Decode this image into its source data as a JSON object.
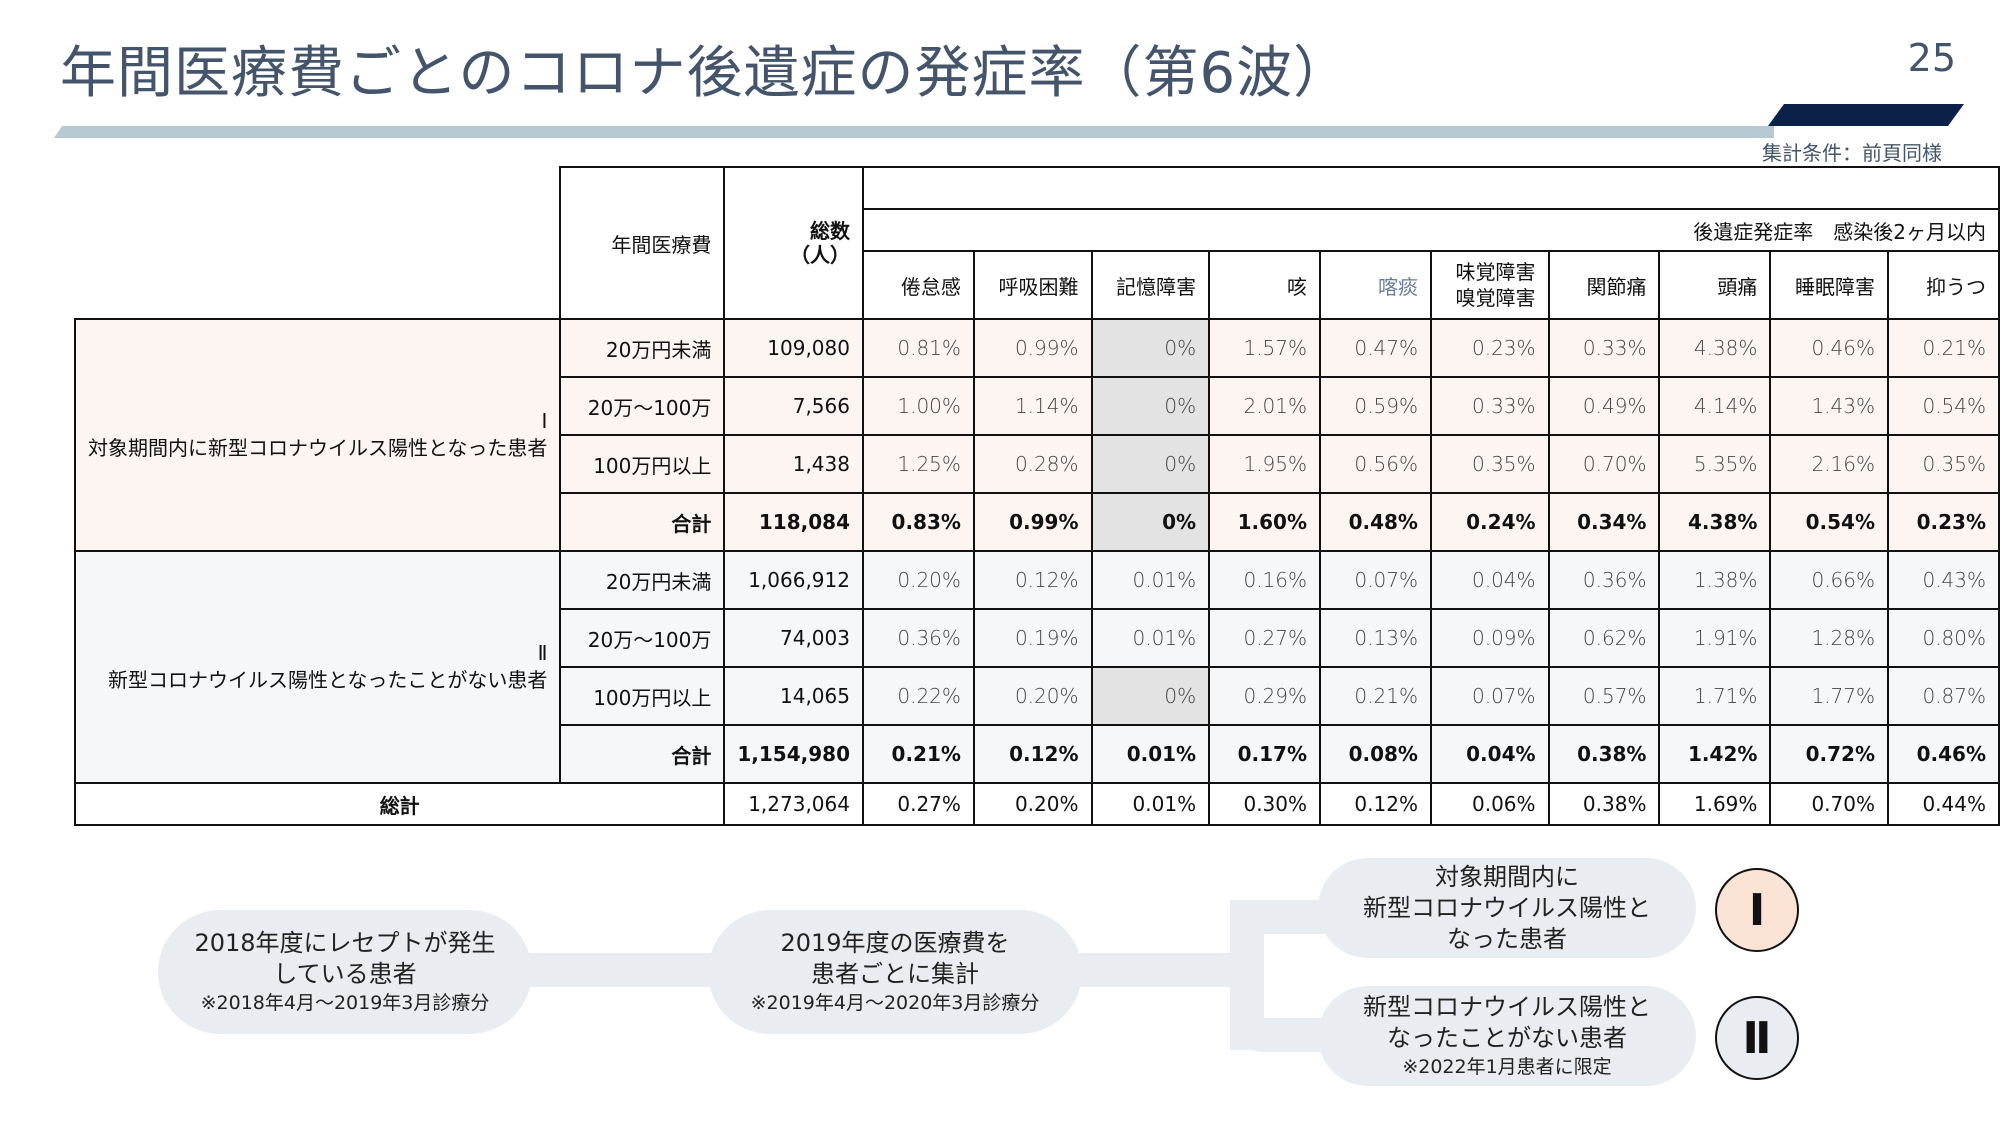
{
  "header": {
    "title": "年間医療費ごとのコロナ後遺症の発症率（第6波）",
    "page_number": "25",
    "condition_note": "集計条件：前頁同様"
  },
  "table": {
    "header_cost": "年間医療費",
    "header_total": "総数\n（人）",
    "header_total_line1": "総数",
    "header_total_line2": "（人）",
    "header_group": "後遺症発症率　感染後2ヶ月以内",
    "columns": [
      "倦怠感",
      "呼吸困難",
      "記憶障害",
      "咳",
      "喀痰",
      "味覚障害\n嗅覚障害",
      "関節痛",
      "頭痛",
      "睡眠障害",
      "抑うつ"
    ],
    "column_taste_line1": "味覚障害",
    "column_taste_line2": "嗅覚障害",
    "groups": [
      {
        "label_mark": "Ⅰ",
        "label": "対象期間内に新型コロナウイルス陽性となった患者",
        "rows": [
          {
            "cost": "20万円未満",
            "total": "109,080",
            "rates": [
              "0.81%",
              "0.99%",
              "0%",
              "1.57%",
              "0.47%",
              "0.23%",
              "0.33%",
              "4.38%",
              "0.46%",
              "0.21%"
            ]
          },
          {
            "cost": "20万～100万",
            "total": "7,566",
            "rates": [
              "1.00%",
              "1.14%",
              "0%",
              "2.01%",
              "0.59%",
              "0.33%",
              "0.49%",
              "4.14%",
              "1.43%",
              "0.54%"
            ]
          },
          {
            "cost": "100万円以上",
            "total": "1,438",
            "rates": [
              "1.25%",
              "0.28%",
              "0%",
              "1.95%",
              "0.56%",
              "0.35%",
              "0.70%",
              "5.35%",
              "2.16%",
              "0.35%"
            ]
          },
          {
            "cost": "合計",
            "total": "118,084",
            "rates": [
              "0.83%",
              "0.99%",
              "0%",
              "1.60%",
              "0.48%",
              "0.24%",
              "0.34%",
              "4.38%",
              "0.54%",
              "0.23%"
            ]
          }
        ]
      },
      {
        "label_mark": "Ⅱ",
        "label": "新型コロナウイルス陽性となったことがない患者",
        "rows": [
          {
            "cost": "20万円未満",
            "total": "1,066,912",
            "rates": [
              "0.20%",
              "0.12%",
              "0.01%",
              "0.16%",
              "0.07%",
              "0.04%",
              "0.36%",
              "1.38%",
              "0.66%",
              "0.43%"
            ]
          },
          {
            "cost": "20万～100万",
            "total": "74,003",
            "rates": [
              "0.36%",
              "0.19%",
              "0.01%",
              "0.27%",
              "0.13%",
              "0.09%",
              "0.62%",
              "1.91%",
              "1.28%",
              "0.80%"
            ]
          },
          {
            "cost": "100万円以上",
            "total": "14,065",
            "rates": [
              "0.22%",
              "0.20%",
              "0%",
              "0.29%",
              "0.21%",
              "0.07%",
              "0.57%",
              "1.71%",
              "1.77%",
              "0.87%"
            ]
          },
          {
            "cost": "合計",
            "total": "1,154,980",
            "rates": [
              "0.21%",
              "0.12%",
              "0.01%",
              "0.17%",
              "0.08%",
              "0.04%",
              "0.38%",
              "1.42%",
              "0.72%",
              "0.46%"
            ]
          }
        ]
      }
    ],
    "grand_total": {
      "label": "総計",
      "total": "1,273,064",
      "rates": [
        "0.27%",
        "0.20%",
        "0.01%",
        "0.30%",
        "0.12%",
        "0.06%",
        "0.38%",
        "1.69%",
        "0.70%",
        "0.44%"
      ]
    }
  },
  "flow": {
    "step1": {
      "line1": "2018年度にレセプトが発生",
      "line2": "している患者",
      "note": "※2018年4月～2019年3月診療分"
    },
    "step2": {
      "line1": "2019年度の医療費を",
      "line2": "患者ごとに集計",
      "note": "※2019年4月～2020年3月診療分"
    },
    "branch1": {
      "line1": "対象期間内に",
      "line2": "新型コロナウイルス陽性と",
      "line3": "なった患者",
      "mark": "Ⅰ"
    },
    "branch2": {
      "line1": "新型コロナウイルス陽性と",
      "line2": "なったことがない患者",
      "note": "※2022年1月患者に限定",
      "mark": "Ⅱ"
    }
  },
  "colors": {
    "title": "#44546a",
    "accent_dark": "#0b2149",
    "accent_light": "#b7c9d3",
    "group1_bg": "#fdf5f1",
    "group2_bg": "#f6f7f9",
    "zero_cell_bg": "#e3e3e3",
    "circle1_bg": "#fbe3d6",
    "circle2_bg": "#e9edf2"
  }
}
